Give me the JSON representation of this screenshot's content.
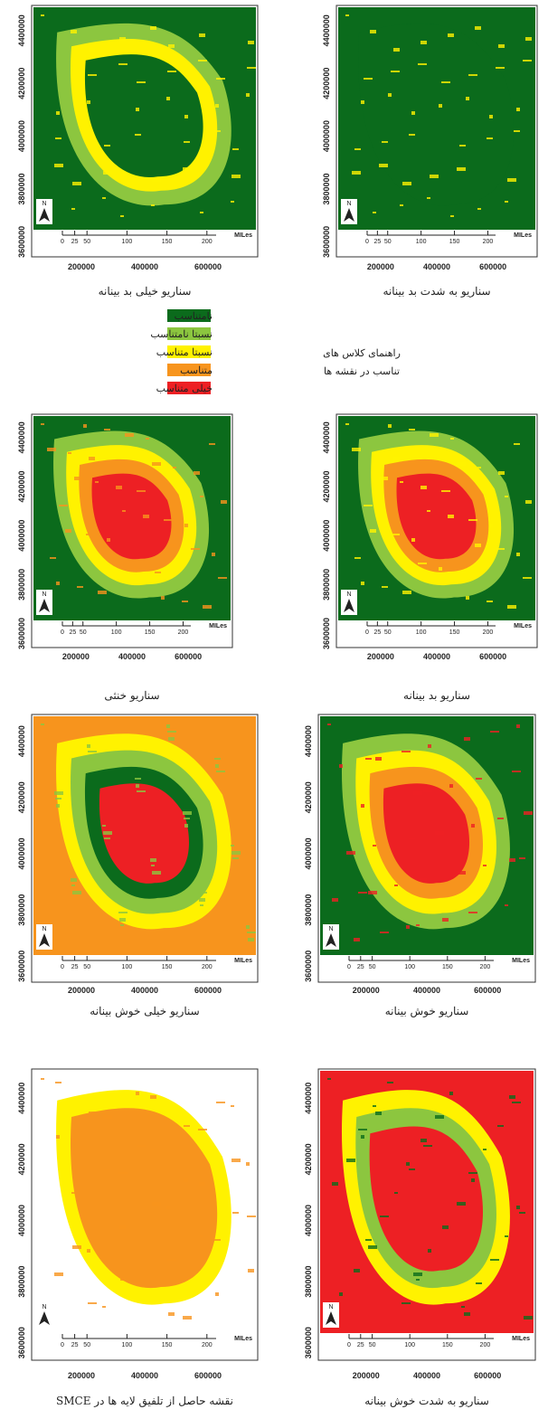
{
  "panels": [
    {
      "caption": "سناریو به شدت بد بینانه"
    },
    {
      "caption": "سناریو خیلی بد بینانه"
    },
    {
      "caption": "سناریو بد بینانه"
    },
    {
      "caption": "سناریو خنثی"
    },
    {
      "caption": "سناریو خوش بینانه"
    },
    {
      "caption": "سناریو خیلی خوش بینانه"
    },
    {
      "caption": "سناریو به شدت خوش بینانه"
    },
    {
      "caption": "نقشه حاصل از تلفیق لایه ها در SMCE"
    }
  ],
  "axis": {
    "yticks": [
      "4400000",
      "4200000",
      "4000000",
      "3800000",
      "3600000"
    ],
    "xticks": [
      "200000",
      "400000",
      "600000"
    ]
  },
  "scale": {
    "labels": [
      "0",
      "25",
      "50",
      "100",
      "150",
      "200"
    ],
    "unit": "MILes"
  },
  "north": "N",
  "legend": {
    "title_lines": [
      "راهنمای کلاس های",
      "تناسب در نقشه ها"
    ],
    "items": [
      {
        "label": "نامتناسب",
        "color": "#0b6b1c"
      },
      {
        "label": "نسبتا نامتناسب",
        "color": "#8cc63f"
      },
      {
        "label": "نسبتا متناسب",
        "color": "#fff200"
      },
      {
        "label": "متناسب",
        "color": "#f7941d"
      },
      {
        "label": "خیلی متناسب",
        "color": "#ed2024"
      }
    ]
  }
}
